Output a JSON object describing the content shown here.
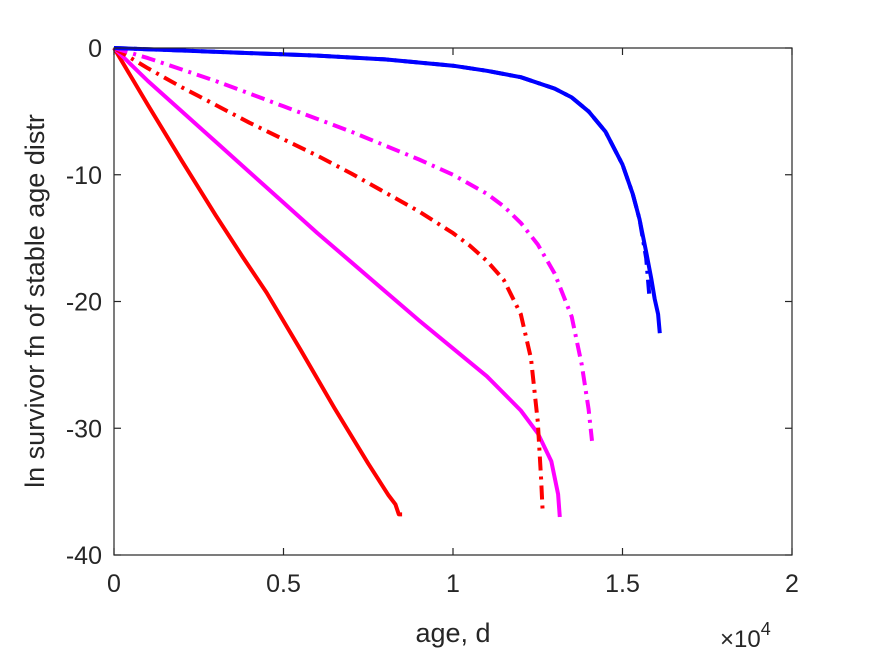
{
  "chart_data": {
    "type": "line",
    "title": "",
    "xlabel": "age, d",
    "ylabel": "ln survivor fn of stable age distr",
    "x_exponent_label": "×10",
    "x_exponent_power": "4",
    "xlim": [
      0,
      20000
    ],
    "ylim": [
      -40,
      0
    ],
    "x_ticks": [
      0,
      5000,
      10000,
      15000,
      20000
    ],
    "x_tick_labels": [
      "0",
      "0.5",
      "1",
      "1.5",
      "2"
    ],
    "y_ticks": [
      0,
      -10,
      -20,
      -30,
      -40
    ],
    "y_tick_labels": [
      "0",
      "-10",
      "-20",
      "-30",
      "-40"
    ],
    "grid": false,
    "legend": "none",
    "series": [
      {
        "color": "#ff0000",
        "style": "solid",
        "x": [
          0,
          1000,
          2000,
          3000,
          3800,
          4500,
          5500,
          6500,
          7500,
          8100,
          8300,
          8400,
          8500
        ],
        "y": [
          0,
          -4.5,
          -8.9,
          -13.2,
          -16.5,
          -19.3,
          -23.8,
          -28.4,
          -32.8,
          -35.3,
          -36.0,
          -36.8,
          -36.8
        ]
      },
      {
        "color": "#ff00ff",
        "style": "solid",
        "x": [
          0,
          1000,
          2000,
          3000,
          4000,
          5000,
          6000,
          7000,
          8000,
          9000,
          10000,
          11000,
          12000,
          12500,
          12900,
          13100,
          13150
        ],
        "y": [
          0,
          -2.6,
          -5.0,
          -7.4,
          -9.8,
          -12.2,
          -14.6,
          -16.9,
          -19.2,
          -21.5,
          -23.7,
          -25.9,
          -28.6,
          -30.4,
          -32.6,
          -35.2,
          -37.0
        ]
      },
      {
        "color": "#ff0000",
        "style": "dashdot",
        "x": [
          0,
          1000,
          2000,
          3000,
          4000,
          5000,
          6000,
          7000,
          8000,
          9000,
          10000,
          10500,
          11000,
          11500,
          12000,
          12300,
          12500,
          12600,
          12650
        ],
        "y": [
          0,
          -1.6,
          -3.1,
          -4.5,
          -5.9,
          -7.2,
          -8.5,
          -9.9,
          -11.4,
          -12.9,
          -14.6,
          -15.6,
          -16.8,
          -18.3,
          -21.0,
          -24.5,
          -29.5,
          -34.0,
          -36.8
        ]
      },
      {
        "color": "#ff00ff",
        "style": "dashdot",
        "x": [
          0,
          1000,
          2000,
          3000,
          4000,
          5000,
          6000,
          7000,
          8000,
          9000,
          10000,
          11000,
          11500,
          12000,
          12500,
          13000,
          13500,
          13800,
          14000,
          14100
        ],
        "y": [
          0,
          -0.8,
          -1.7,
          -2.6,
          -3.6,
          -4.6,
          -5.6,
          -6.6,
          -7.7,
          -8.8,
          -10.0,
          -11.5,
          -12.5,
          -13.8,
          -15.5,
          -17.8,
          -21.2,
          -25.0,
          -28.5,
          -31.0
        ]
      },
      {
        "color": "#0000ff",
        "style": "dashdot",
        "x": [
          0,
          2000,
          4000,
          6000,
          8000,
          10000,
          11000,
          12000,
          13000,
          13500,
          14000,
          14500,
          15000,
          15300,
          15500,
          15700,
          15800
        ],
        "y": [
          0,
          -0.2,
          -0.4,
          -0.6,
          -0.9,
          -1.4,
          -1.8,
          -2.3,
          -3.2,
          -3.9,
          -5.0,
          -6.6,
          -9.2,
          -11.5,
          -13.5,
          -16.6,
          -19.8
        ]
      },
      {
        "color": "#0000ff",
        "style": "solid",
        "x": [
          0,
          2000,
          4000,
          6000,
          8000,
          10000,
          11000,
          12000,
          13000,
          13500,
          14000,
          14500,
          15000,
          15300,
          15500,
          15700,
          15850,
          15950,
          16050,
          16100
        ],
        "y": [
          0,
          -0.2,
          -0.4,
          -0.6,
          -0.9,
          -1.4,
          -1.8,
          -2.3,
          -3.2,
          -3.9,
          -5.0,
          -6.6,
          -9.2,
          -11.5,
          -13.5,
          -16.1,
          -18.2,
          -19.8,
          -21.0,
          -22.5
        ]
      }
    ]
  }
}
